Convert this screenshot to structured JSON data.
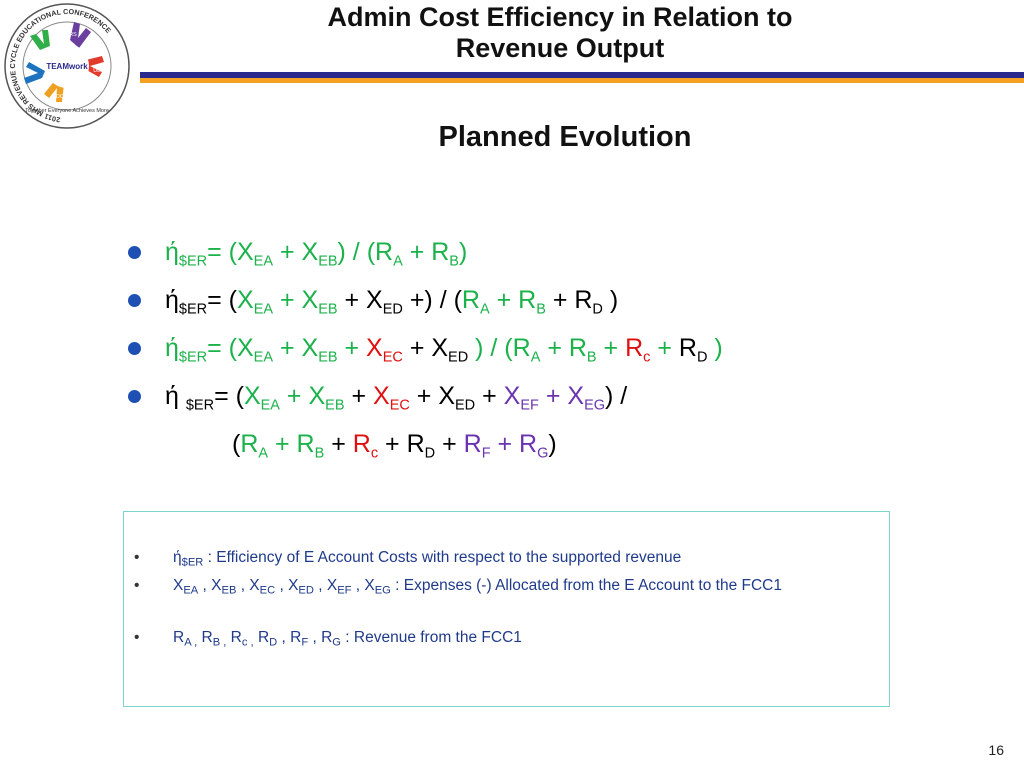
{
  "logo": {
    "ring_text": "2011 MHS REVENUE CYCLE EDUCATIONAL CONFERENCE",
    "center": "TEAMwork",
    "tagline": "Together Everyone Achieves More",
    "hand_labels": [
      "MEPRS",
      "UBO",
      "UBU",
      "DQ"
    ]
  },
  "header": {
    "title_line1": "Admin Cost Efficiency in Relation to",
    "title_line2": "Revenue Output",
    "subtitle": "Planned Evolution"
  },
  "colors": {
    "green": "#1cb24b",
    "red": "#e01010",
    "purple": "#6a33b0",
    "bullet": "#1e50b4"
  },
  "formulas": [
    [
      {
        "t": "ή",
        "c": "g"
      },
      {
        "sub": "$ER",
        "c": "g"
      },
      {
        "t": "= (X",
        "c": "g"
      },
      {
        "sub": "EA",
        "c": "g"
      },
      {
        "t": " + X",
        "c": "g"
      },
      {
        "sub": "EB",
        "c": "g"
      },
      {
        "t": ") / (R",
        "c": "g"
      },
      {
        "sub": "A",
        "c": "g"
      },
      {
        "t": " + R",
        "c": "g"
      },
      {
        "sub": "B",
        "c": "g"
      },
      {
        "t": ")",
        "c": "g"
      }
    ],
    [
      {
        "t": "ή"
      },
      {
        "sub": "$ER"
      },
      {
        "t": "= ("
      },
      {
        "t": "X",
        "c": "g"
      },
      {
        "sub": "EA",
        "c": "g"
      },
      {
        "t": " + X",
        "c": "g"
      },
      {
        "sub": "EB",
        "c": "g"
      },
      {
        "t": "  + X"
      },
      {
        "sub": "ED"
      },
      {
        "t": " +) /  ("
      },
      {
        "t": "R",
        "c": "g"
      },
      {
        "sub": "A",
        "c": "g"
      },
      {
        "t": "  + R",
        "c": "g"
      },
      {
        "sub": "B",
        "c": "g"
      },
      {
        "t": "  + R"
      },
      {
        "sub": "D"
      },
      {
        "t": " )"
      }
    ],
    [
      {
        "t": "ή",
        "c": "g"
      },
      {
        "sub": "$ER",
        "c": "g"
      },
      {
        "t": "= (X",
        "c": "g"
      },
      {
        "sub": "EA",
        "c": "g"
      },
      {
        "t": " + X",
        "c": "g"
      },
      {
        "sub": "EB",
        "c": "g"
      },
      {
        "t": " + ",
        "c": "g"
      },
      {
        "t": "X",
        "c": "r"
      },
      {
        "sub": "EC",
        "c": "r"
      },
      {
        "t": " + X"
      },
      {
        "sub": "ED"
      },
      {
        "t": " ) / (R",
        "c": "g"
      },
      {
        "sub": "A",
        "c": "g"
      },
      {
        "t": "  + R",
        "c": "g"
      },
      {
        "sub": "B",
        "c": "g"
      },
      {
        "t": "  + ",
        "c": "g"
      },
      {
        "t": "R",
        "c": "r"
      },
      {
        "sub": "c",
        "c": "r"
      },
      {
        "t": "   + ",
        "c": "g"
      },
      {
        "t": "R"
      },
      {
        "sub": "D"
      },
      {
        "t": " )",
        "c": "g"
      }
    ],
    [
      {
        "t": "ή "
      },
      {
        "sub": "$ER"
      },
      {
        "t": "= ("
      },
      {
        "t": "X",
        "c": "g"
      },
      {
        "sub": "EA",
        "c": "g"
      },
      {
        "t": " + X",
        "c": "g"
      },
      {
        "sub": "EB",
        "c": "g"
      },
      {
        "t": " + "
      },
      {
        "t": "X",
        "c": "r"
      },
      {
        "sub": "EC",
        "c": "r"
      },
      {
        "t": " + X"
      },
      {
        "sub": "ED"
      },
      {
        "t": " + "
      },
      {
        "t": "X",
        "c": "p"
      },
      {
        "sub": "EF",
        "c": "p"
      },
      {
        "t": " + X",
        "c": "p"
      },
      {
        "sub": "EG",
        "c": "p"
      },
      {
        "t": ") /"
      }
    ],
    [
      {
        "t": "("
      },
      {
        "t": "R",
        "c": "g"
      },
      {
        "sub": "A",
        "c": "g"
      },
      {
        "t": "  + R",
        "c": "g"
      },
      {
        "sub": "B",
        "c": "g"
      },
      {
        "t": "  + "
      },
      {
        "t": "R",
        "c": "r"
      },
      {
        "sub": "c",
        "c": "r"
      },
      {
        "t": "   + R"
      },
      {
        "sub": "D"
      },
      {
        "t": "   + "
      },
      {
        "t": "R",
        "c": "p"
      },
      {
        "sub": "F",
        "c": "p"
      },
      {
        "t": "   + R",
        "c": "p"
      },
      {
        "sub": "G",
        "c": "p"
      },
      {
        "t": ")"
      }
    ]
  ],
  "definitions": [
    {
      "bullet": "•",
      "parts": [
        {
          "t": "ή"
        },
        {
          "sub": "$ER"
        },
        {
          "t": " :    Efficiency of E Account Costs with respect to the supported revenue"
        }
      ]
    },
    {
      "bullet": "•",
      "parts": [
        {
          "t": "X"
        },
        {
          "sub": "EA"
        },
        {
          "t": " , X"
        },
        {
          "sub": "EB"
        },
        {
          "t": " , X"
        },
        {
          "sub": "EC"
        },
        {
          "t": " , X"
        },
        {
          "sub": "ED"
        },
        {
          "t": " ,  X"
        },
        {
          "sub": "EF"
        },
        {
          "t": " ,  X"
        },
        {
          "sub": "EG"
        },
        {
          "t": " :  Expenses (-) Allocated from the E Account to the FCC1"
        }
      ]
    },
    {
      "bullet": "•",
      "parts": [
        {
          "t": "R"
        },
        {
          "sub": "A ,"
        },
        {
          "t": " R"
        },
        {
          "sub": "B  ,"
        },
        {
          "t": "  R"
        },
        {
          "sub": "c  ,"
        },
        {
          "t": " R"
        },
        {
          "sub": "D"
        },
        {
          "t": "  , R"
        },
        {
          "sub": "F"
        },
        {
          "t": "  , R"
        },
        {
          "sub": "G"
        },
        {
          "t": " :  Revenue from the FCC1"
        }
      ]
    }
  ],
  "page_number": "16"
}
